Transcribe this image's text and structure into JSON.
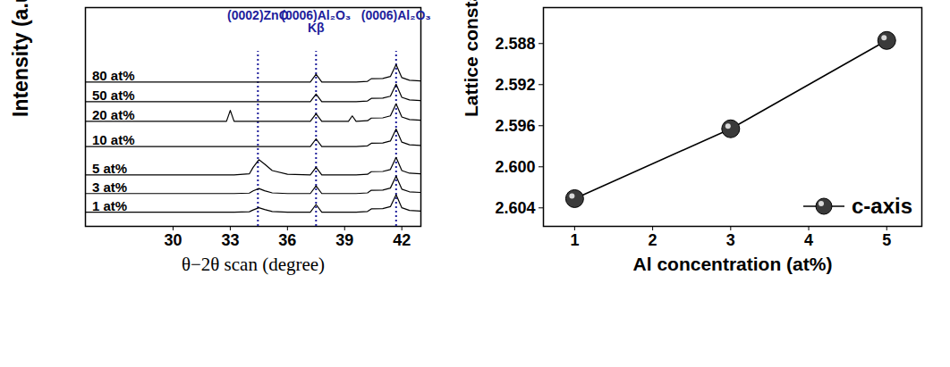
{
  "chart_data": [
    {
      "type": "line",
      "x_label": "θ−2θ scan (degree)",
      "y_label": "Intensity (a.u.)",
      "x": [
        25.4,
        30,
        31,
        32,
        32.8,
        33.0,
        33.2,
        34.0,
        34.2,
        34.5,
        34.8,
        35.2,
        36.0,
        37.2,
        37.5,
        37.8,
        38.5,
        39.2,
        39.4,
        39.6,
        40.2,
        40.4,
        41.0,
        41.4,
        41.7,
        42.0,
        42.4,
        43
      ],
      "series": [
        {
          "name": "80 at%",
          "color": "#000000",
          "values": [
            66,
            66,
            66,
            66,
            66,
            66,
            66,
            66,
            66,
            66,
            66,
            66,
            66,
            66,
            69.5,
            66,
            66,
            66,
            66,
            66,
            66.3,
            67.5,
            67.6,
            68.5,
            74,
            68,
            66.8,
            66.5
          ]
        },
        {
          "name": "50 at%",
          "color": "#000000",
          "values": [
            57,
            57,
            57,
            57,
            57,
            57,
            57,
            57,
            57,
            57,
            57,
            57,
            57,
            57,
            60.5,
            57,
            57,
            57,
            57,
            57,
            57.3,
            58.5,
            58.6,
            59.5,
            65,
            59,
            57.8,
            57.5
          ]
        },
        {
          "name": "20 at%",
          "color": "#000000",
          "values": [
            48,
            48,
            48,
            48,
            48,
            53,
            48,
            48,
            48,
            48,
            48,
            48,
            48,
            48,
            51.5,
            48,
            48,
            48,
            50.5,
            48,
            48.3,
            49.5,
            49.6,
            50.5,
            56,
            50,
            48.8,
            48.5
          ]
        },
        {
          "name": "10 at%",
          "color": "#000000",
          "values": [
            36.5,
            36.5,
            36.5,
            36.5,
            36.5,
            36.5,
            36.5,
            36.5,
            36.5,
            36.5,
            36.5,
            36.5,
            36.5,
            36.5,
            40,
            36.5,
            36.5,
            36.5,
            36.5,
            36.5,
            36.8,
            38,
            38.1,
            39,
            44.5,
            38.5,
            37.3,
            37
          ]
        },
        {
          "name": "5 at%",
          "color": "#000000",
          "values": [
            23.5,
            23.5,
            23.5,
            23.5,
            23.5,
            23.5,
            23.5,
            24,
            27,
            30.5,
            28.5,
            25.5,
            23.8,
            23.5,
            27,
            23.5,
            23.5,
            23.5,
            23.5,
            23.5,
            23.8,
            25,
            25.1,
            26,
            31.5,
            25.5,
            24.3,
            24
          ]
        },
        {
          "name": "3 at%",
          "color": "#000000",
          "values": [
            15,
            15,
            15,
            15,
            15,
            15,
            15,
            15.2,
            16.2,
            17.3,
            16.3,
            15.3,
            15,
            15,
            18.5,
            15,
            15,
            15,
            15,
            15,
            15.3,
            16.5,
            16.6,
            17.5,
            23,
            17,
            15.8,
            15.5
          ]
        },
        {
          "name": "1 at%",
          "color": "#000000",
          "values": [
            6.5,
            6.5,
            6.5,
            6.5,
            6.5,
            6.5,
            6.5,
            6.7,
            7.5,
            8.5,
            7.7,
            6.8,
            6.5,
            6.5,
            10,
            6.5,
            6.5,
            6.5,
            6.5,
            6.5,
            6.8,
            8,
            8.1,
            9,
            14.5,
            8.5,
            7.3,
            7
          ]
        }
      ],
      "xlim": [
        25.4,
        43
      ],
      "xticks": [
        30,
        33,
        36,
        39,
        42
      ],
      "ylim": [
        0,
        100
      ],
      "tick_labels": "x",
      "annotations": [
        {
          "text": "(0002)ZnO",
          "x": 34.45
        },
        {
          "text": "(0006)Al₂O₃\nKβ",
          "x": 37.5
        },
        {
          "text": "(0006)Al₂O₃",
          "x": 41.7
        }
      ]
    },
    {
      "type": "line",
      "x_label": "Al concentration (at%)",
      "y_label": "Lattice constant (Å)",
      "x": [
        1,
        3,
        5
      ],
      "series": [
        {
          "name": "c-axis",
          "color": "#000000",
          "marker": "circle",
          "values": [
            2.6031,
            2.5963,
            2.5877
          ]
        }
      ],
      "xlim": [
        0.6,
        5.45
      ],
      "xticks": [
        1,
        2,
        3,
        4,
        5
      ],
      "ylim": [
        2.6058,
        2.5845
      ],
      "yticks": [
        2.588,
        2.592,
        2.596,
        {
          "value": 2.6,
          "label": "2.600"
        },
        2.604
      ],
      "legend": "lower right"
    }
  ]
}
